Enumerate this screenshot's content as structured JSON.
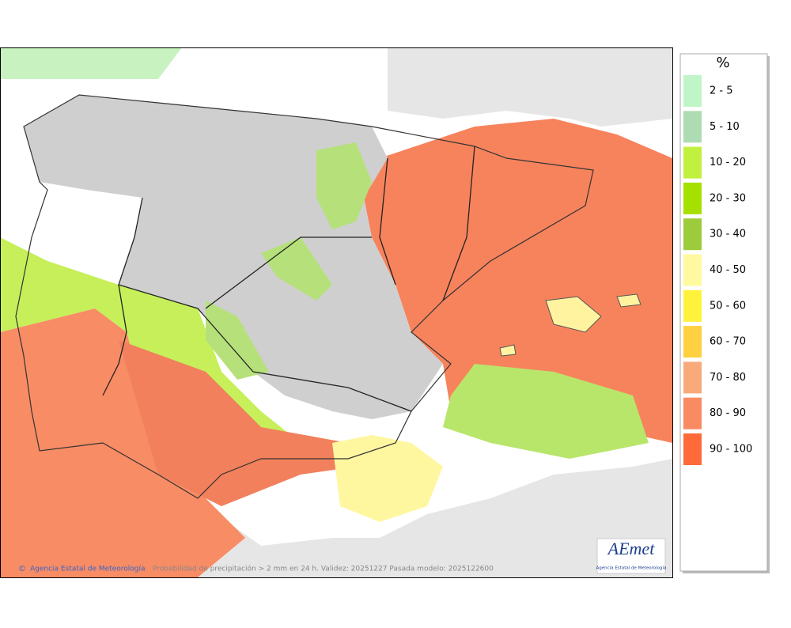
{
  "legend": {
    "title": "%",
    "items": [
      {
        "label": "2 - 5",
        "color": "#c0f5c8"
      },
      {
        "label": "5 - 10",
        "color": "#aedcb2"
      },
      {
        "label": "10 - 20",
        "color": "#c2f03e"
      },
      {
        "label": "20 - 30",
        "color": "#a6e000"
      },
      {
        "label": "30 - 40",
        "color": "#9ccb3c"
      },
      {
        "label": "40 - 50",
        "color": "#fff9a0"
      },
      {
        "label": "50 - 60",
        "color": "#fff23c"
      },
      {
        "label": "60 - 70",
        "color": "#ffd040"
      },
      {
        "label": "70 - 80",
        "color": "#f8aa7a"
      },
      {
        "label": "80 - 90",
        "color": "#f98a62"
      },
      {
        "label": "90 - 100",
        "color": "#ff6a3a"
      }
    ]
  },
  "footer": {
    "copyright": "©",
    "credit": "Agencia Estatal de Meteorología",
    "caption": "Probabilidad de precipitación > 2 mm en 24 h. Validez: 20251227 Pasada modelo: 2025122600"
  },
  "logo": {
    "name": "AEmet",
    "subtitle": "Agencia Estatal de Meteorología"
  }
}
